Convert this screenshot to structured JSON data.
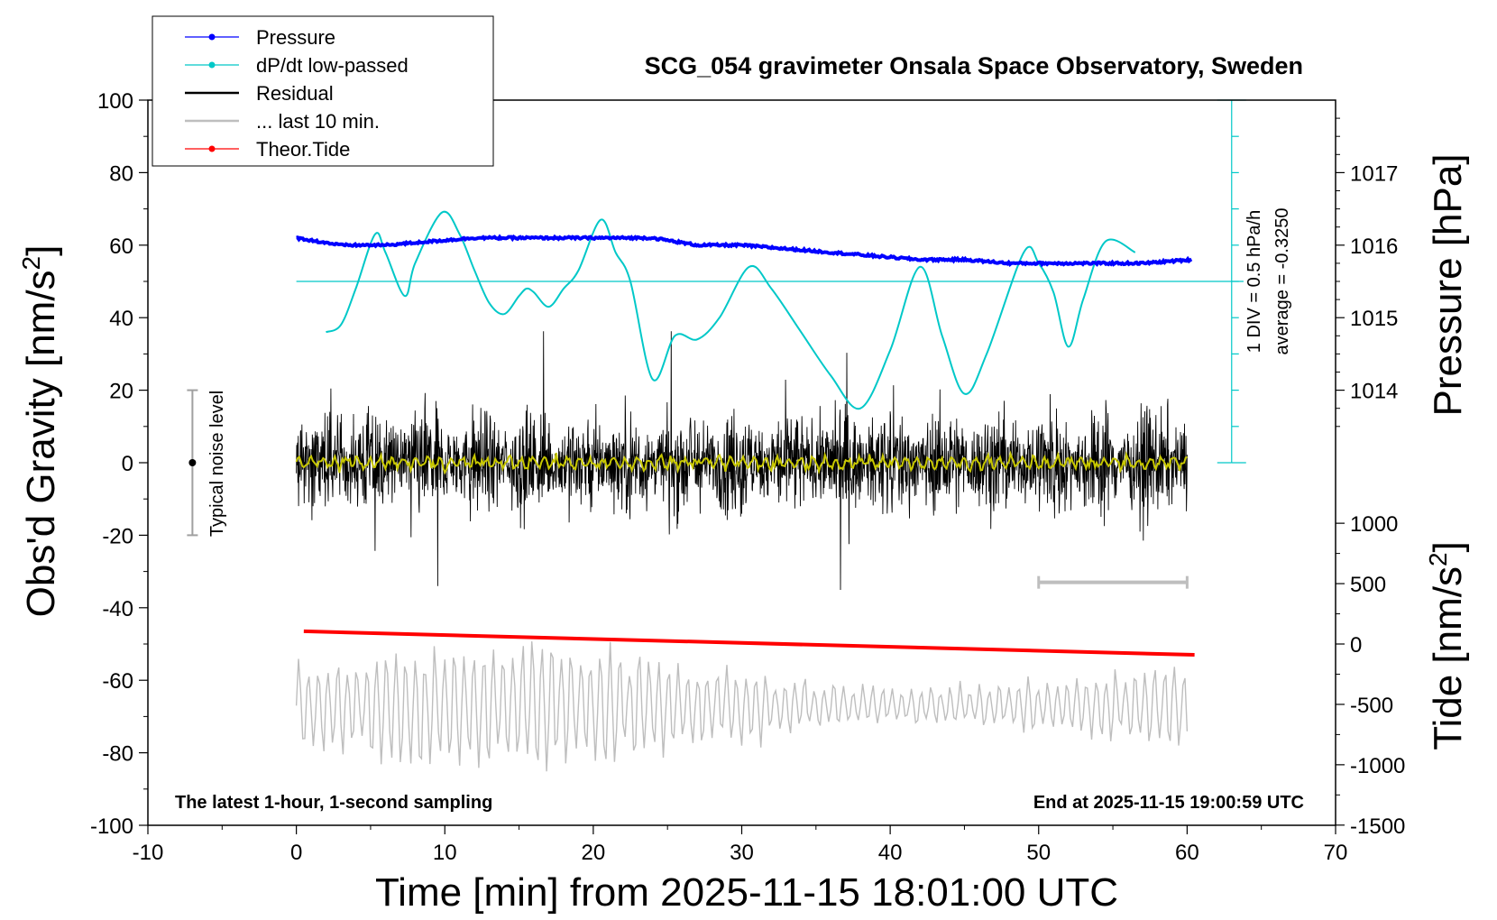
{
  "chart_data": {
    "type": "line",
    "title": "SCG_054 gravimeter Onsala Space Observatory, Sweden",
    "xlabel": "Time [min] from 2025-11-15 18:01:00 UTC",
    "ylabel_left": "Obs'd Gravity [nm/s",
    "ylabel_left_sup": "2",
    "ylabel_left_close": "]",
    "ylabel_right_top": "Pressure [hPa]",
    "ylabel_right_bottom": "Tide [nm/s",
    "ylabel_right_bottom_sup": "2",
    "ylabel_right_bottom_close": "]",
    "xlim": [
      -10,
      70
    ],
    "ylim": [
      -100,
      100
    ],
    "xticks": [
      -10,
      0,
      10,
      20,
      30,
      40,
      50,
      60,
      70
    ],
    "yticks": [
      -100,
      -80,
      -60,
      -40,
      -20,
      0,
      20,
      40,
      60,
      80,
      100
    ],
    "pressure_ticks": [
      1014,
      1015,
      1016,
      1017
    ],
    "pressure_axis": {
      "ref_value": 1016,
      "ref_gravity": 60,
      "gravity_per_hPa": 20
    },
    "tide_ticks": [
      -1500,
      -1000,
      -500,
      0,
      500,
      1000
    ],
    "tide_axis": {
      "ref_value": 0,
      "ref_gravity": -50,
      "gravity_per_unit": 0.0333
    },
    "legend": {
      "position": "top-left",
      "entries": [
        {
          "label": "Pressure",
          "color": "#0000ff",
          "marker": true
        },
        {
          "label": "dP/dt low-passed",
          "color": "#00c8c8",
          "marker": true
        },
        {
          "label": "Residual",
          "color": "#000000",
          "marker": false
        },
        {
          "label": "... last 10 min.",
          "color": "#bebebe",
          "marker": false
        },
        {
          "label": "Theor.Tide",
          "color": "#ff0000",
          "marker": true
        }
      ]
    },
    "annotations": {
      "bottom_left": "The latest 1-hour, 1-second sampling",
      "bottom_right": "End at 2025-11-15 19:00:59 UTC",
      "noise_label": "Typical noise level",
      "dpdt_scale": "1 DIV = 0.5 hPa/h",
      "dpdt_average": "average = -0.3250"
    },
    "noise_bar": {
      "x": -7,
      "low": -20,
      "high": 20,
      "center": 0
    },
    "last10_bar": {
      "x_start": 50,
      "x_end": 60,
      "y": -33
    },
    "dpdt_axis": {
      "x": 63,
      "y_bottom": 0,
      "y_top": 100,
      "baseline_y": 50
    },
    "series": [
      {
        "name": "Pressure",
        "color": "#0000ff",
        "x": [
          0,
          3,
          6,
          9,
          12,
          15,
          18,
          21,
          24,
          27,
          30,
          33,
          36,
          39,
          42,
          45,
          48,
          51,
          54,
          57,
          60.3
        ],
        "y": [
          1016.1,
          1016.0,
          1016.0,
          1016.05,
          1016.1,
          1016.1,
          1016.1,
          1016.1,
          1016.1,
          1016.0,
          1016.0,
          1015.95,
          1015.9,
          1015.85,
          1015.8,
          1015.8,
          1015.75,
          1015.75,
          1015.75,
          1015.75,
          1015.8
        ]
      },
      {
        "name": "dP/dt low-passed",
        "color": "#00c8c8",
        "x": [
          2,
          3,
          4,
          5.3,
          6,
          7.3,
          8,
          9.8,
          11,
          12,
          13,
          14,
          15,
          15.5,
          16,
          17,
          18,
          19,
          20.5,
          21.5,
          22.5,
          24,
          25.5,
          27,
          28.5,
          30.5,
          32,
          34,
          36,
          38,
          40,
          42,
          43.5,
          45,
          46.5,
          49,
          50,
          51,
          52,
          53,
          54.5,
          56.5
        ],
        "y": [
          36,
          38,
          48,
          63,
          58,
          46,
          55,
          69,
          63,
          53,
          44,
          41,
          46,
          48,
          47,
          43,
          48,
          53,
          67,
          58,
          50,
          23,
          35,
          34,
          40,
          54,
          48,
          36,
          24,
          15,
          31,
          54,
          35,
          19,
          30,
          58,
          55,
          47,
          32,
          45,
          61,
          58
        ]
      },
      {
        "name": "Theor.Tide",
        "color": "#ff0000",
        "x": [
          0.5,
          60.5
        ],
        "y": [
          -46.5,
          -53
        ]
      },
      {
        "name": "Residual",
        "color": "#000000",
        "x_range": [
          0,
          60
        ],
        "envelope": 25
      },
      {
        "name": "... last 10 min.",
        "color": "#bebebe",
        "x_range": [
          0,
          60
        ],
        "center": -67
      }
    ]
  },
  "colors": {
    "pressure": "#0000ff",
    "dpdt": "#00c8c8",
    "residual": "#000000",
    "smoothed": "#c8c800",
    "last10": "#bebebe",
    "tide": "#ff0000",
    "noise": "#a0a0a0"
  }
}
